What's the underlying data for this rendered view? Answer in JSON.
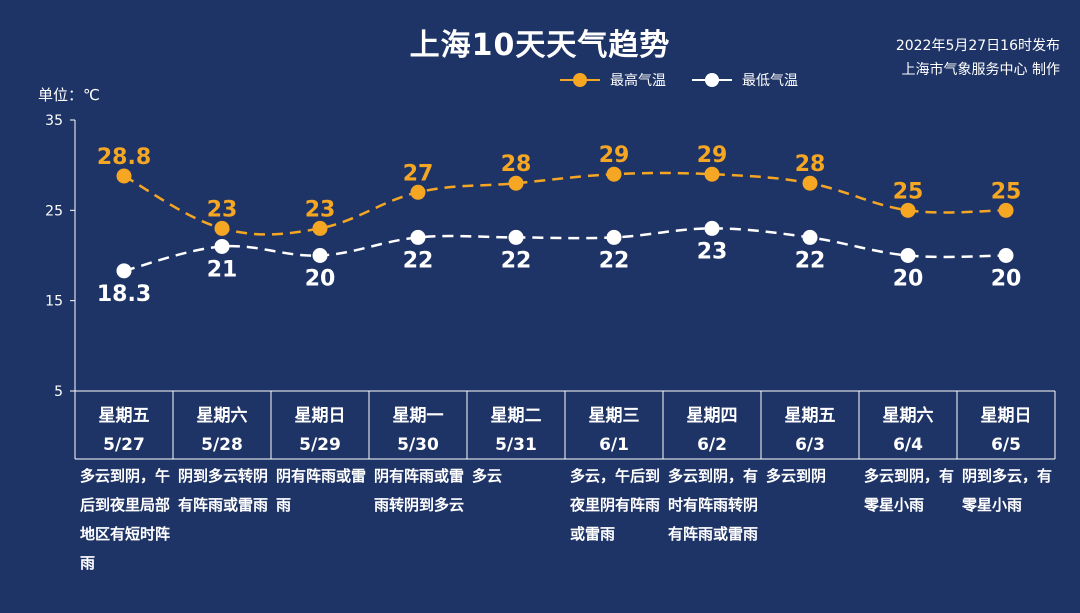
{
  "title": "上海10天天气趋势",
  "meta": {
    "published": "2022年5月27日16时发布",
    "producer": "上海市气象服务中心 制作"
  },
  "unit_label": "单位：℃",
  "colors": {
    "background": "#1f3466",
    "high": "#f5a623",
    "low": "#ffffff",
    "axis": "#ffffff"
  },
  "legend": [
    {
      "name": "最高气温",
      "color": "#f5a623"
    },
    {
      "name": "最低气温",
      "color": "#ffffff"
    }
  ],
  "chart_data": {
    "type": "line",
    "title": "上海10天天气趋势",
    "ylabel": "单位：℃",
    "ylim": [
      5,
      35
    ],
    "yticks": [
      5,
      15,
      25,
      35
    ],
    "grid": false,
    "legend_position": "top-right",
    "categories": [
      "5/27",
      "5/28",
      "5/29",
      "5/30",
      "5/31",
      "6/1",
      "6/2",
      "6/3",
      "6/4",
      "6/5"
    ],
    "weekdays": [
      "星期五",
      "星期六",
      "星期日",
      "星期一",
      "星期二",
      "星期三",
      "星期四",
      "星期五",
      "星期六",
      "星期日"
    ],
    "series": [
      {
        "name": "最高气温",
        "values": [
          28.8,
          23,
          23,
          27,
          28,
          29,
          29,
          28,
          25,
          25
        ],
        "labels": [
          "28.8",
          "23",
          "23",
          "27",
          "28",
          "29",
          "29",
          "28",
          "25",
          "25"
        ]
      },
      {
        "name": "最低气温",
        "values": [
          18.3,
          21,
          20,
          22,
          22,
          22,
          23,
          22,
          20,
          20
        ],
        "labels": [
          "18.3",
          "21",
          "20",
          "22",
          "22",
          "22",
          "23",
          "22",
          "20",
          "20"
        ]
      }
    ],
    "weather": [
      "多云到阴，午后到夜里局部地区有短时阵雨",
      "阴到多云转阴有阵雨或雷雨",
      "阴有阵雨或雷雨",
      "阴有阵雨或雷雨转阴到多云",
      "多云",
      "多云，午后到夜里阴有阵雨或雷雨",
      "多云到阴，有时有阵雨转阴有阵雨或雷雨",
      "多云到阴",
      "多云到阴，有零星小雨",
      "阴到多云，有零星小雨"
    ]
  }
}
